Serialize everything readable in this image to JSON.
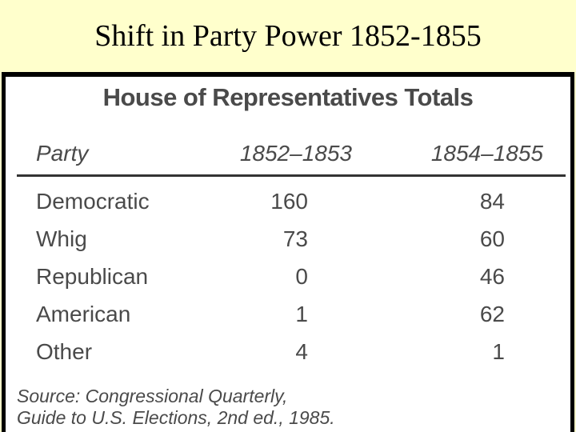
{
  "slide": {
    "title": "Shift in Party Power 1852-1855"
  },
  "chart_data": {
    "type": "table",
    "title": "House of Representatives Totals",
    "columns": [
      "Party",
      "1852–1853",
      "1854–1855"
    ],
    "rows": [
      {
        "party": "Democratic",
        "values": [
          "160",
          "84"
        ]
      },
      {
        "party": "Whig",
        "values": [
          "73",
          "60"
        ]
      },
      {
        "party": "Republican",
        "values": [
          "0",
          "46"
        ]
      },
      {
        "party": "American",
        "values": [
          "1",
          "62"
        ]
      },
      {
        "party": "Other",
        "values": [
          "4",
          "1"
        ]
      }
    ],
    "source": {
      "line1": "Source: Congressional Quarterly,",
      "line2_part1": "Guide to U.S. Elections,",
      "line2_part2": " 2nd ed., 1985."
    }
  }
}
